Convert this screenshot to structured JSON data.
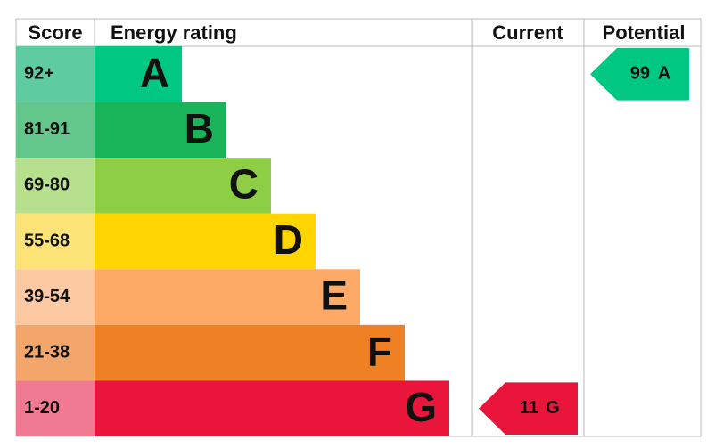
{
  "header": {
    "score": "Score",
    "rating": "Energy rating",
    "current": "Current",
    "potential": "Potential"
  },
  "bands": [
    {
      "range": "92+",
      "letter": "A",
      "color": "#00c781",
      "light": "#5ecba0"
    },
    {
      "range": "81-91",
      "letter": "B",
      "color": "#19b459",
      "light": "#63c68a"
    },
    {
      "range": "69-80",
      "letter": "C",
      "color": "#8dce46",
      "light": "#b6df8e"
    },
    {
      "range": "55-68",
      "letter": "D",
      "color": "#ffd500",
      "light": "#fbe377"
    },
    {
      "range": "39-54",
      "letter": "E",
      "color": "#fcaa65",
      "light": "#fcc9a2"
    },
    {
      "range": "21-38",
      "letter": "F",
      "color": "#ef8023",
      "light": "#f2a66b"
    },
    {
      "range": "1-20",
      "letter": "G",
      "color": "#e9153b",
      "light": "#ef7a91"
    }
  ],
  "current": {
    "score": 11,
    "band": "G"
  },
  "potential": {
    "score": 99,
    "band": "A"
  }
}
